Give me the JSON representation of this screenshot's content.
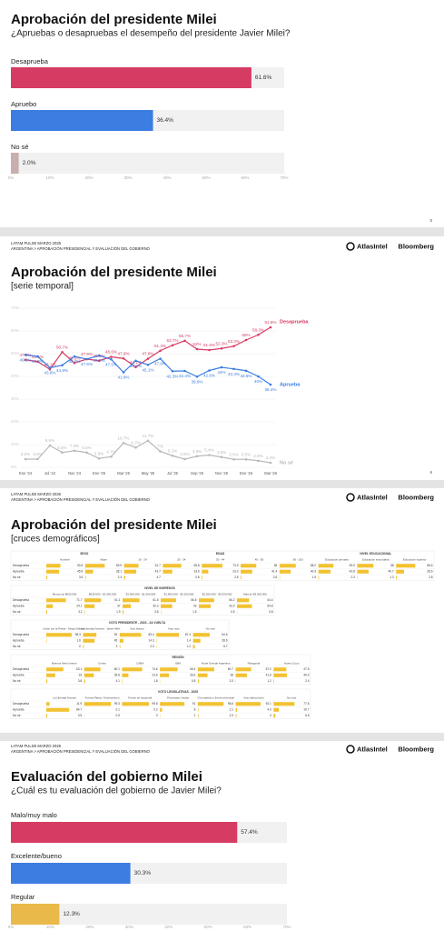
{
  "slides": [
    {
      "page": "8"
    },
    {
      "kicker": "LATAM PULSE MARZO 2026",
      "breadcrumb": "ARGENTINA > APROBACIÓN PRESIDENCIAL Y EVALUACIÓN DEL GOBIERNO",
      "logos": [
        "AtlasIntel",
        "Bloomberg"
      ],
      "page": "9"
    },
    {
      "kicker": "LATAM PULSE MARZO 2026",
      "breadcrumb": "ARGENTINA > APROBACIÓN PRESIDENCIAL Y EVALUACIÓN DEL GOBIERNO",
      "logos": [
        "AtlasIntel",
        "Bloomberg"
      ]
    },
    {
      "kicker": "LATAM PULSE MARZO 2026",
      "breadcrumb": "ARGENTINA > APROBACIÓN PRESIDENCIAL Y EVALUACIÓN DEL GOBIERNO",
      "logos": [
        "AtlasIntel",
        "Bloomberg"
      ]
    }
  ],
  "chart_data": [
    {
      "type": "hbar",
      "title": "Aprobación del presidente Milei",
      "subtitle": "¿Apruebas o desapruebas el desempeño del presidente Javier Milei?",
      "categories": [
        "Desaprueba",
        "Apruebo",
        "No sé"
      ],
      "values": [
        61.6,
        36.4,
        2.0
      ],
      "value_labels": [
        "61.6%",
        "36.4%",
        "2.0%"
      ],
      "colors": [
        "#d63c63",
        "#3b7de0",
        "#c9aeae"
      ],
      "xlim": [
        0,
        70
      ],
      "xticks": [
        {
          "value": 0,
          "label": "0%"
        },
        {
          "value": 10,
          "label": "10%"
        },
        {
          "value": 20,
          "label": "20%"
        },
        {
          "value": 30,
          "label": "30%"
        },
        {
          "value": 40,
          "label": "40%"
        },
        {
          "value": 50,
          "label": "50%"
        },
        {
          "value": 60,
          "label": "60%"
        },
        {
          "value": 70,
          "label": "70%"
        }
      ]
    },
    {
      "type": "line",
      "title": "Aprobación del presidente Milei",
      "subtitle": "[serie temporal]",
      "categories": [
        "Ene '24",
        null,
        "Jul '24",
        null,
        "Nov '24",
        null,
        "Ene '25",
        null,
        "Mar '25",
        null,
        "May '25",
        null,
        "Jul '25",
        null,
        "Sep '25",
        null,
        "Nov '25",
        null,
        "Ene '26",
        null,
        "Mar '26"
      ],
      "series": [
        {
          "name": "Desaprueba",
          "color": "#d63c63",
          "values": [
            47.3,
            46.5,
            43.1,
            50.7,
            45.9,
            47.6,
            46.9,
            48.6,
            47.9,
            44.1,
            47.8,
            51.3,
            53.7,
            55.7,
            52,
            51.6,
            52.3,
            53.3,
            56,
            58.3,
            61.6
          ],
          "value_labels": [
            "47.3%",
            "46.5%",
            "43.1%",
            "50.7%",
            "45.9%",
            "47.6%",
            "46.9%",
            "48.6%",
            "47.9%",
            "44.1%",
            "47.8%",
            "51.3%",
            "53.7%",
            "55.7%",
            "52%",
            "51.6%",
            "52.3%",
            "53.3%",
            "56%",
            "58.3%",
            "61.6%"
          ]
        },
        {
          "name": "Aprueba",
          "color": "#3b7de0",
          "values": [
            49.5,
            48.8,
            43.8,
            44.9,
            48.8,
            47.6,
            49.2,
            47.5,
            41.8,
            46.9,
            45.1,
            47.8,
            42.3,
            42.4,
            39.9,
            42.6,
            44,
            43.3,
            42.5,
            40,
            36.4
          ],
          "value_labels": [
            "49.5%",
            "48.8%",
            "43.8%",
            "44.9%",
            "48.8%",
            "47.6%",
            "49.2%",
            "47.5%",
            "41.8%",
            "46.9%",
            "45.1%",
            "47.8%",
            "42.3%",
            "42.4%",
            "39.9%",
            "42.6%",
            "44%",
            "43.3%",
            "42.5%",
            "40%",
            "36.4%"
          ]
        },
        {
          "name": "No sé",
          "color": "#b9b9b9",
          "values": [
            3.6,
            3.6,
            9.6,
            6.5,
            7.3,
            6.5,
            3.9,
            4.7,
            10.7,
            8.7,
            11.7,
            7,
            5.1,
            3.6,
            4.9,
            5.4,
            4.5,
            3.5,
            3.5,
            2.9,
            2.0
          ],
          "value_labels": [
            "3.6%",
            "3.6%",
            "9.6%",
            "6.5%",
            "7.3%",
            "6.5%",
            "3.9%",
            "4.7%",
            "10.7%",
            "8.7%",
            "11.7%",
            "7%",
            "5.1%",
            "3.6%",
            "4.9%",
            "5.4%",
            "4.5%",
            "3.5%",
            "3.5%",
            "2.9%",
            "2.0%"
          ]
        }
      ],
      "ylim": [
        0,
        70
      ],
      "yticks": [
        {
          "value": 0,
          "label": "0%"
        },
        {
          "value": 10,
          "label": "10%"
        },
        {
          "value": 20,
          "label": "20%"
        },
        {
          "value": 30,
          "label": "30%"
        },
        {
          "value": 40,
          "label": "40%"
        },
        {
          "value": 50,
          "label": "50%"
        },
        {
          "value": 60,
          "label": "60%"
        },
        {
          "value": 70,
          "label": "70%"
        }
      ],
      "grid": true
    },
    {
      "type": "table",
      "title": "Aprobación del presidente Milei",
      "subtitle": "[cruces demográficos]",
      "blocks": [
        {
          "groups": [
            {
              "name": "SEXO",
              "span": 2
            },
            {
              "name": "EDAD",
              "span": 5
            },
            {
              "name": "NIVEL EDUCACIONAL",
              "span": 3
            }
          ],
          "columns": [
            "Hombre",
            "Mujer",
            "16 - 24",
            "25 - 34",
            "35 - 44",
            "45 - 59",
            "60 - 100",
            "Educación primaria",
            "Educación secundaria",
            "Educación superior"
          ],
          "rows": [
            {
              "label": "Desaprueba",
              "values": [
                50.5,
                69.9,
                51.7,
                65.8,
                73.9,
                56,
                58.2,
                53.9,
                58,
                68.6
              ]
            },
            {
              "label": "Aprueba",
              "values": [
                45.9,
                28.1,
                43.7,
                33.6,
                23.3,
                41.4,
                40.3,
                43.8,
                40.7,
                28.6
              ]
            },
            {
              "label": "No sé",
              "values": [
                3.6,
                2.4,
                4.7,
                0.6,
                2.8,
                2.6,
                1.5,
                2.3,
                1.3,
                2.8
              ]
            }
          ]
        },
        {
          "groups": [
            {
              "name": "NIVEL DE INGRESOS",
              "span": 6
            }
          ],
          "columns": [
            "Menos de $630.000",
            "$630.000 - $1.000.000",
            "$1.000.000 - $1.500.000",
            "$1.500.000 - $2.200.000",
            "$2.200.000 - $3.000.000",
            "Más de $3.000.000"
          ],
          "rows": [
            {
              "label": "Desaprueba",
              "values": [
                71.7,
                61.1,
                61.8,
                56.5,
                56.2,
                44.4
              ]
            },
            {
              "label": "Aprueba",
              "values": [
                24.1,
                37,
                30.3,
                42,
                43.3,
                54.8
              ]
            },
            {
              "label": "No sé",
              "values": [
                3.2,
                1.9,
                3.8,
                1.5,
                0.5,
                0.8
              ]
            }
          ]
        },
        {
          "groups": [
            {
              "name": "VOTO PRESIDENTE - 2023 - 2A VUELTA",
              "span": 5
            }
          ],
          "columns": [
            "Unión por la Patria - Sergio Massa",
            "La Libertad Avanza - Javier Milei",
            "Voto blanco",
            "Voto nulo",
            "No votó"
          ],
          "rows": [
            {
              "label": "Desaprueba",
              "values": [
                98.3,
                52,
                83.4,
                87.4,
                64.6
              ]
            },
            {
              "label": "Aprueba",
              "values": [
                1.6,
                45,
                14.3,
                1.4,
                28.6
              ]
            },
            {
              "label": "No sé",
              "values": [
                0,
                3,
                2.3,
                1.2,
                6.7
              ]
            }
          ]
        },
        {
          "groups": [
            {
              "name": "REGIÓN",
              "span": 7
            }
          ],
          "columns": [
            "Buenos Aires Interior",
            "Centro",
            "CABA",
            "GBA",
            "Norte Grande Argentino",
            "Patagonia",
            "Nuevo Cuyo"
          ],
          "rows": [
            {
              "label": "Desaprueba",
              "values": [
                63.1,
                60.1,
                74.6,
                65.4,
                60.7,
                57.2,
                47.6
              ]
            },
            {
              "label": "Aprueba",
              "values": [
                33,
                35.8,
                23.6,
                33.6,
                36,
                41.6,
                49.9
              ]
            },
            {
              "label": "No sé",
              "values": [
                3.8,
                4.1,
                1.8,
                0.8,
                3.3,
                1.2,
                2.4
              ]
            }
          ]
        },
        {
          "groups": [
            {
              "name": "VOTO LEGISLATIVAS - 2025",
              "span": 7
            }
          ],
          "columns": [
            "La Libertad Avanza",
            "Fuerza Patria / Kirchnerismo",
            "Frente de Izquierda",
            "Provincias Unidas",
            "Otro partido o frente provincial",
            "Voto blanco/nulo",
            "No votó"
          ],
          "rows": [
            {
              "label": "Desaprueba",
              "values": [
                11.9,
                99.3,
                99.8,
                91,
                95.6,
                92.1,
                77.6
              ]
            },
            {
              "label": "Aprueba",
              "values": [
                84.7,
                0.1,
                0.2,
                8,
                2.1,
                4.9,
                19.7
              ]
            },
            {
              "label": "No sé",
              "values": [
                3.5,
                0.5,
                0,
                1,
                2.3,
                3,
                6.5
              ]
            }
          ]
        }
      ]
    },
    {
      "type": "hbar",
      "title": "Evaluación del gobierno Milei",
      "subtitle": "¿Cuál es tu evaluación del gobierno de Javier Milei?",
      "categories": [
        "Malo/muy malo",
        "Excelente/bueno",
        "Regular"
      ],
      "values": [
        57.4,
        30.3,
        12.3
      ],
      "value_labels": [
        "57.4%",
        "30.3%",
        "12.3%"
      ],
      "colors": [
        "#d63c63",
        "#3b7de0",
        "#e9b949"
      ],
      "xlim": [
        0,
        70
      ],
      "xticks": [
        {
          "value": 0,
          "label": "0%"
        },
        {
          "value": 10,
          "label": "10%"
        },
        {
          "value": 20,
          "label": "20%"
        },
        {
          "value": 30,
          "label": "30%"
        },
        {
          "value": 40,
          "label": "40%"
        },
        {
          "value": 50,
          "label": "50%"
        },
        {
          "value": 60,
          "label": "60%"
        },
        {
          "value": 70,
          "label": "70%"
        }
      ]
    }
  ]
}
